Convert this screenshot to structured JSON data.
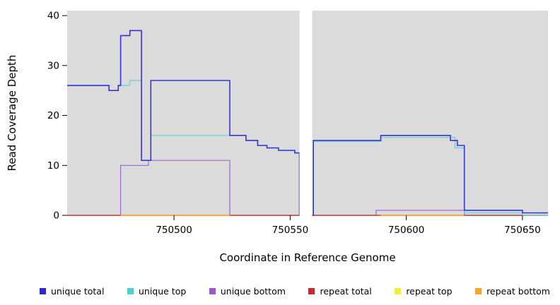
{
  "chart_data": {
    "type": "line",
    "style": "step-after",
    "title": "",
    "xlabel": "Coordinate in Reference Genome",
    "ylabel": "Read Coverage Depth",
    "xlim": [
      750454,
      750661
    ],
    "ylim": [
      0,
      41
    ],
    "x_ticks": [
      750500,
      750550,
      750600,
      750650
    ],
    "y_ticks": [
      0,
      10,
      20,
      30,
      40
    ],
    "grid": false,
    "legend_position": "bottom",
    "panel_bg": "#DBDBDB",
    "gap_region": {
      "x_start": 750554,
      "x_end": 750559.5,
      "color": "#FFFFFF"
    },
    "series": [
      {
        "name": "repeat top",
        "color": "#F0F03C",
        "width": 1.2,
        "paths": [
          [
            [
              750454,
              0
            ],
            [
              750661,
              0
            ]
          ]
        ]
      },
      {
        "name": "unique bottom",
        "color": "#A06BCE",
        "width": 1.2,
        "paths": [
          [
            [
              750454,
              0
            ],
            [
              750477,
              10
            ],
            [
              750489,
              11
            ],
            [
              750524,
              0
            ],
            [
              750587,
              1
            ],
            [
              750625,
              0
            ],
            [
              750661,
              0
            ]
          ]
        ]
      },
      {
        "name": "repeat total",
        "color": "#B42B2B",
        "width": 1.2,
        "paths": [
          [
            [
              750454,
              0
            ],
            [
              750661,
              0
            ]
          ]
        ]
      },
      {
        "name": "repeat bottom",
        "color": "#FF9C20",
        "width": 1.2,
        "paths": [
          [
            [
              750477,
              0
            ],
            [
              750524,
              0
            ]
          ],
          [
            [
              750589,
              0
            ],
            [
              750625,
              0
            ]
          ]
        ]
      },
      {
        "name": "unique top",
        "color": "#5FD4D4",
        "width": 1.2,
        "paths": [
          [
            [
              750454,
              26
            ],
            [
              750472,
              25
            ],
            [
              750476,
              26
            ],
            [
              750481,
              27
            ],
            [
              750486,
              11
            ],
            [
              750490,
              16
            ],
            [
              750531,
              15
            ],
            [
              750536,
              14
            ],
            [
              750540,
              13.5
            ],
            [
              750545,
              13
            ],
            [
              750552,
              12.5
            ],
            [
              750554,
              0
            ],
            [
              750560,
              14.8
            ],
            [
              750589,
              15.6
            ],
            [
              750621,
              13.5
            ],
            [
              750625,
              0.5
            ],
            [
              750650,
              0
            ],
            [
              750661,
              0
            ]
          ]
        ]
      },
      {
        "name": "unique total",
        "color": "#3535D6",
        "width": 1.6,
        "paths": [
          [
            [
              750454,
              26
            ],
            [
              750472,
              25
            ],
            [
              750476,
              26
            ],
            [
              750477,
              36
            ],
            [
              750481,
              37
            ],
            [
              750486,
              11
            ],
            [
              750490,
              27
            ],
            [
              750524,
              16
            ],
            [
              750531,
              15
            ],
            [
              750536,
              14
            ],
            [
              750540,
              13.5
            ],
            [
              750545,
              13
            ],
            [
              750552,
              12.5
            ],
            [
              750554,
              0
            ],
            [
              750560,
              15
            ],
            [
              750589,
              16
            ],
            [
              750619,
              15
            ],
            [
              750622,
              14
            ],
            [
              750625,
              1
            ],
            [
              750650,
              0.5
            ],
            [
              750661,
              0.5
            ]
          ]
        ]
      }
    ]
  },
  "legend": {
    "items": [
      {
        "label": "unique total",
        "color": "#2A2AD4"
      },
      {
        "label": "unique top",
        "color": "#4FD1D1"
      },
      {
        "label": "unique bottom",
        "color": "#9B59C8"
      },
      {
        "label": "repeat total",
        "color": "#C82A2A"
      },
      {
        "label": "repeat top",
        "color": "#F0F03C"
      },
      {
        "label": "repeat bottom",
        "color": "#F5A428"
      }
    ]
  }
}
